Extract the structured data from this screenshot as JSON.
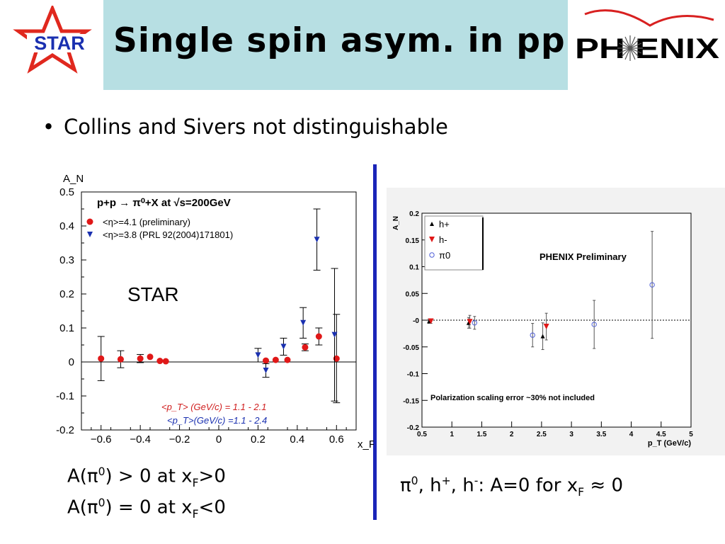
{
  "slide": {
    "title": "Single spin asym. in pp",
    "bullet": "Collins and Sivers not distinguishable",
    "star_logo_text": "STAR",
    "phenix_logo_text": "PH ENIX",
    "left_caption_1": {
      "pre": "A(π",
      "sup": "0",
      "mid": ") > 0 at x",
      "sub": "F",
      "post": ">0"
    },
    "left_caption_2": {
      "pre": "A(π",
      "sup": "0",
      "mid": ") = 0 at x",
      "sub": "F",
      "post": "<0"
    },
    "right_caption": {
      "p1": "π",
      "s1": "0",
      "p2": ", h",
      "s2": "+",
      "p3": ", h",
      "s3": "-",
      "p4": ": A=0 for x",
      "sub": "F",
      "p5": " ≈ 0"
    },
    "colors": {
      "title_bg": "#b7dfe3",
      "divider": "#1a24b8",
      "red": "#e01818",
      "blue": "#1a30b0"
    }
  },
  "chart_data": [
    {
      "type": "scatter",
      "title": "p+p → π⁰+X at √s=200GeV",
      "label_in_plot": "STAR",
      "ylabel": "A_N",
      "xlabel": "x_F",
      "xlim": [
        -0.7,
        0.7
      ],
      "ylim": [
        -0.2,
        0.5
      ],
      "xticks": [
        -0.6,
        -0.4,
        -0.2,
        0,
        0.2,
        0.4,
        0.6
      ],
      "xtick_labels": [
        "−0.6",
        "−0.4",
        "−0.2",
        "0",
        "0.2",
        "0.4",
        "0.6"
      ],
      "yticks": [
        -0.2,
        -0.1,
        0,
        0.1,
        0.2,
        0.3,
        0.4,
        0.5
      ],
      "ytick_labels": [
        "-0.2",
        "-0.1",
        "0",
        "0.1",
        "0.2",
        "0.3",
        "0.4",
        "0.5"
      ],
      "legend": [
        "<η>=4.1 (preliminary)",
        "<η>=3.8 (PRL 92(2004)171801)"
      ],
      "pt_note_red": "<p_T> (GeV/c) =    1.1      -      2.1",
      "pt_note_blue": "<p_T>(GeV/c) =1.1      -      2.4",
      "series": [
        {
          "name": "<η>=4.1 (preliminary)",
          "marker": "circle",
          "color": "#e01818",
          "points": [
            {
              "x": -0.6,
              "y": 0.01,
              "err": 0.065
            },
            {
              "x": -0.5,
              "y": 0.008,
              "err": 0.025
            },
            {
              "x": -0.4,
              "y": 0.01,
              "err": 0.012
            },
            {
              "x": -0.35,
              "y": 0.015,
              "err": 0
            },
            {
              "x": -0.3,
              "y": 0.003,
              "err": 0
            },
            {
              "x": -0.27,
              "y": 0.002,
              "err": 0
            },
            {
              "x": 0.24,
              "y": 0.004,
              "err": 0
            },
            {
              "x": 0.29,
              "y": 0.006,
              "err": 0
            },
            {
              "x": 0.35,
              "y": 0.006,
              "err": 0
            },
            {
              "x": 0.44,
              "y": 0.043,
              "err": 0.01
            },
            {
              "x": 0.51,
              "y": 0.075,
              "err": 0.025
            },
            {
              "x": 0.6,
              "y": 0.01,
              "err": 0.13
            }
          ]
        },
        {
          "name": "<η>=3.8 (PRL 92(2004)171801)",
          "marker": "triangle-down",
          "color": "#1a30b0",
          "points": [
            {
              "x": 0.2,
              "y": 0.02,
              "err": 0.02
            },
            {
              "x": 0.24,
              "y": -0.025,
              "err": 0.02
            },
            {
              "x": 0.33,
              "y": 0.045,
              "err": 0.025
            },
            {
              "x": 0.43,
              "y": 0.115,
              "err": 0.045
            },
            {
              "x": 0.5,
              "y": 0.36,
              "err": 0.09
            },
            {
              "x": 0.59,
              "y": 0.08,
              "err": 0.195
            }
          ]
        }
      ]
    },
    {
      "type": "scatter",
      "title": "PHENIX Preliminary",
      "ylabel": "A_N",
      "xlabel": "p_T (GeV/c)",
      "xlim": [
        0.5,
        5
      ],
      "ylim": [
        -0.2,
        0.2
      ],
      "xticks": [
        0.5,
        1,
        1.5,
        2,
        2.5,
        3,
        3.5,
        4,
        4.5,
        5
      ],
      "xtick_labels": [
        "0.5",
        "1",
        "1.5",
        "2",
        "2.5",
        "3",
        "3.5",
        "4",
        "4.5",
        "5"
      ],
      "yticks": [
        -0.2,
        -0.15,
        -0.1,
        -0.05,
        0,
        0.05,
        0.1,
        0.15,
        0.2
      ],
      "ytick_labels": [
        "-0.2",
        "-0.15",
        "-0.1",
        "-0.05",
        "-0",
        "0.05",
        "0.1",
        "0.15",
        "0.2"
      ],
      "note": "Polarization scaling error ~30% not included",
      "legend": [
        "h+",
        "h-",
        "π0"
      ],
      "series": [
        {
          "name": "h+",
          "marker": "triangle-up",
          "color": "#000000",
          "points": [
            {
              "x": 0.62,
              "y": -0.002,
              "err": 0.004
            },
            {
              "x": 1.28,
              "y": -0.005,
              "err": 0.01
            },
            {
              "x": 2.52,
              "y": -0.03,
              "err": 0.025
            }
          ]
        },
        {
          "name": "h-",
          "marker": "triangle-down",
          "color": "#e01818",
          "points": [
            {
              "x": 0.65,
              "y": -0.002,
              "err": 0.004
            },
            {
              "x": 1.3,
              "y": -0.003,
              "err": 0.012
            },
            {
              "x": 2.58,
              "y": -0.012,
              "err": 0.025
            }
          ]
        },
        {
          "name": "π0",
          "marker": "circle-open",
          "color": "#5060d8",
          "points": [
            {
              "x": 1.38,
              "y": -0.005,
              "err": 0.012
            },
            {
              "x": 2.35,
              "y": -0.028,
              "err": 0.022
            },
            {
              "x": 3.38,
              "y": -0.008,
              "err": 0.045
            },
            {
              "x": 4.35,
              "y": 0.066,
              "err": 0.1
            }
          ]
        }
      ]
    }
  ]
}
